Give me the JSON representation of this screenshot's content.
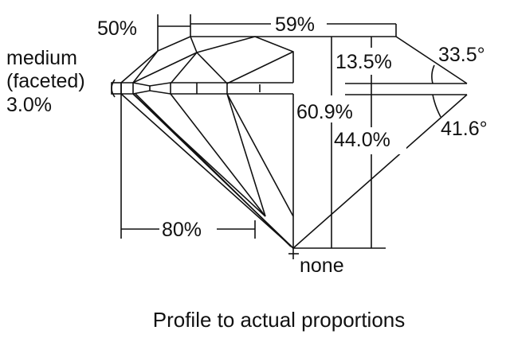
{
  "labels": {
    "crown_height": "50%",
    "table": "59%",
    "culet_label": "medium",
    "girdle_type": "(faceted)",
    "girdle_thickness": "3.0%",
    "crown_height_pct": "13.5%",
    "crown_angle": "33.5°",
    "total_depth": "60.9%",
    "pavilion_depth": "44.0%",
    "pavilion_angle": "41.6°",
    "lower_half": "80%",
    "culet": "none"
  },
  "caption": "Profile to actual proportions",
  "colors": {
    "line": "#111111",
    "background": "#ffffff"
  }
}
